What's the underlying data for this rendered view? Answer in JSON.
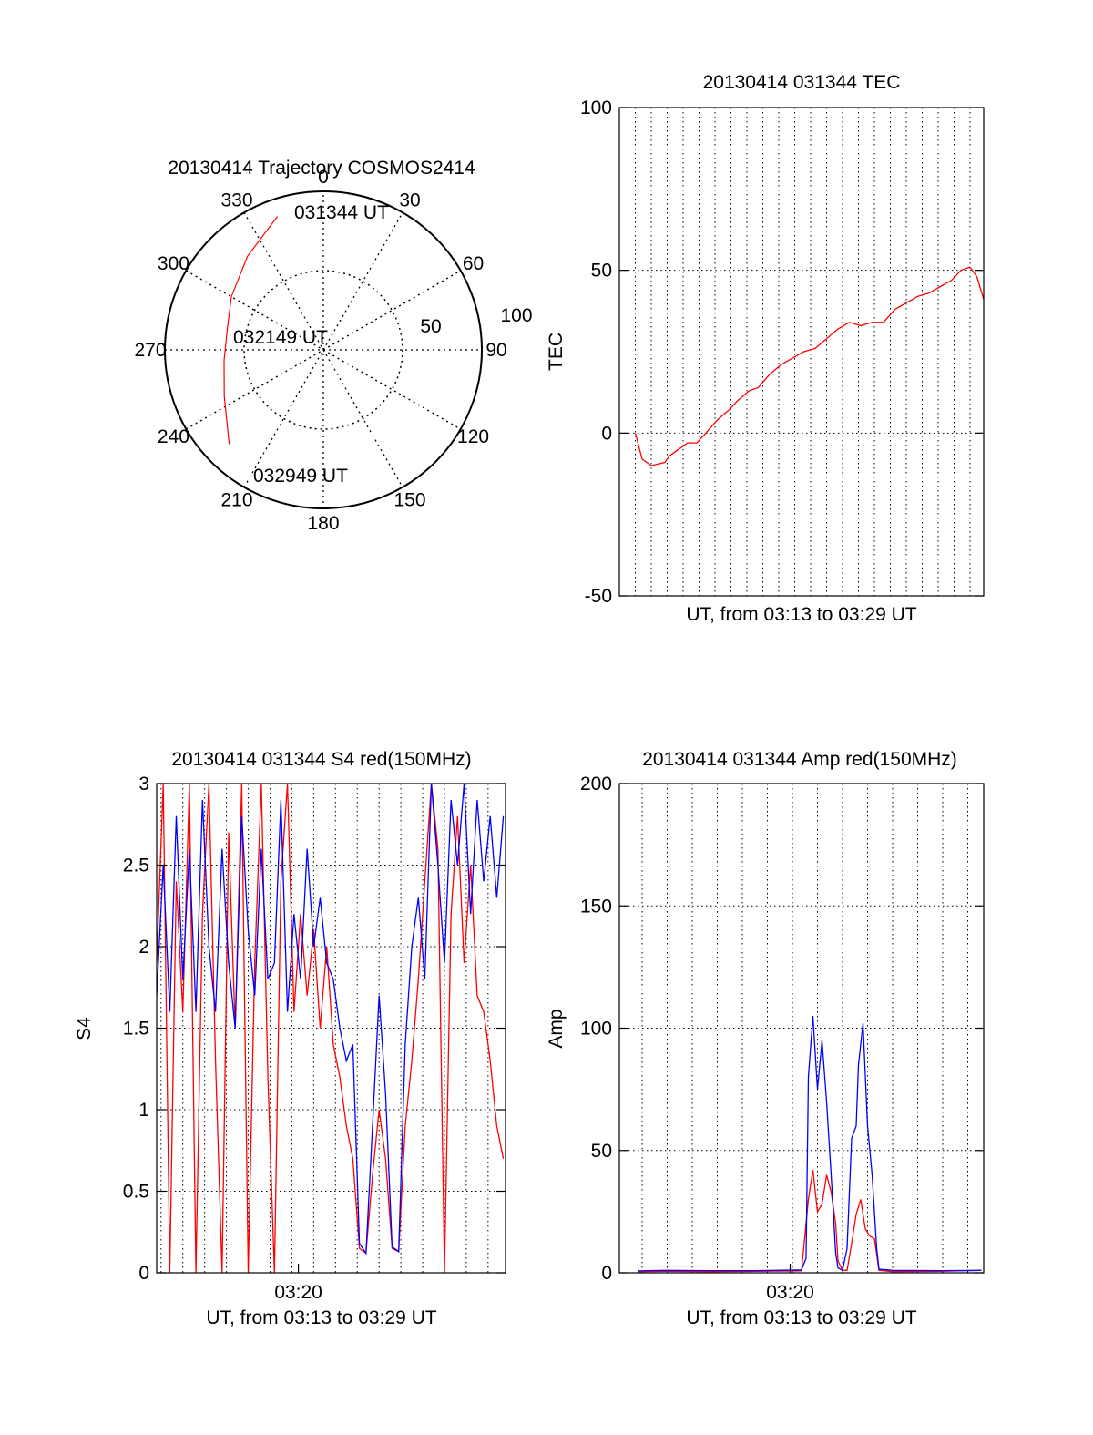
{
  "chart_data": [
    {
      "type": "polar",
      "title": "20130414 Trajectory COSMOS2414",
      "angle_labels": [
        "0",
        "30",
        "60",
        "90",
        "120",
        "150",
        "180",
        "210",
        "240",
        "270",
        "300",
        "330"
      ],
      "radius_labels": [
        "50",
        "100"
      ],
      "start_label": "031344 UT",
      "mid_label": "032149 UT",
      "end_label": "032949 UT",
      "trajectory_color": "#ff0000",
      "trajectory": [
        {
          "az": 341,
          "r": 89
        },
        {
          "az": 321,
          "r": 76
        },
        {
          "az": 300,
          "r": 67
        },
        {
          "az": 282,
          "r": 62
        },
        {
          "az": 264,
          "r": 63
        },
        {
          "az": 245,
          "r": 69
        },
        {
          "az": 225,
          "r": 84
        }
      ]
    },
    {
      "type": "line",
      "title": "20130414 031344 TEC",
      "xlabel": "UT, from 03:13 to 03:29 UT",
      "ylabel": "TEC",
      "ylim": [
        -50,
        100
      ],
      "yticks": [
        "-50",
        "0",
        "50",
        "100"
      ],
      "xlim": [
        0,
        16
      ],
      "xgrid": [
        0.7,
        1.4,
        2.1,
        2.8,
        3.5,
        4.2,
        4.9,
        5.6,
        6.3,
        7.0,
        7.7,
        8.4,
        9.1,
        9.8,
        10.5,
        11.2,
        11.9,
        12.6,
        13.3,
        14.0,
        14.7,
        15.4
      ],
      "series": [
        {
          "color": "#ff0000",
          "x": [
            0.7,
            1.0,
            1.4,
            2.0,
            2.2,
            2.6,
            3.0,
            3.4,
            3.8,
            4.3,
            4.8,
            5.2,
            5.7,
            6.1,
            6.6,
            7.1,
            7.6,
            8.1,
            8.6,
            9.1,
            9.6,
            10.1,
            10.6,
            11.1,
            11.6,
            12.1,
            12.6,
            13.1,
            13.6,
            14.1,
            14.6,
            15.0,
            15.4,
            15.7,
            16.0
          ],
          "y": [
            0,
            -8,
            -10,
            -9,
            -7,
            -5,
            -3,
            -3,
            0,
            4,
            7,
            10,
            13,
            14,
            18,
            21,
            23,
            25,
            26,
            29,
            32,
            34,
            33,
            34,
            34,
            38,
            40,
            42,
            43,
            45,
            47,
            50,
            51,
            48,
            41
          ]
        }
      ]
    },
    {
      "type": "line",
      "title": "20130414 031344 S4 red(150MHz)",
      "xlabel": "UT, from 03:13 to 03:29 UT",
      "ylabel": "S4",
      "ylim": [
        0,
        3
      ],
      "yticks": [
        "0",
        "0.5",
        "1",
        "1.5",
        "2",
        "2.5",
        "3"
      ],
      "xlim": [
        0,
        16
      ],
      "xtick_labels": [
        {
          "x": 6.5,
          "label": "03:20"
        }
      ],
      "xgrid": [
        0.2,
        1.2,
        2.2,
        3.2,
        4.2,
        5.2,
        6.2,
        7.2,
        8.2,
        9.2,
        10.2,
        11.2,
        12.2,
        13.2,
        14.2,
        15.2
      ],
      "series": [
        {
          "color": "#ff0000",
          "x": [
            0.0,
            0.3,
            0.6,
            0.9,
            1.2,
            1.5,
            1.8,
            2.1,
            2.4,
            2.7,
            3.0,
            3.3,
            3.6,
            3.9,
            4.2,
            4.5,
            4.8,
            5.1,
            5.4,
            5.7,
            6.0,
            6.3,
            6.6,
            6.9,
            7.2,
            7.5,
            7.8,
            8.1,
            8.4,
            8.7,
            9.0,
            9.3,
            9.6,
            9.9,
            10.2,
            10.5,
            10.8,
            11.1,
            11.4,
            11.7,
            12.0,
            12.3,
            12.6,
            12.9,
            13.2,
            13.5,
            13.8,
            14.1,
            14.4,
            14.7,
            15.0,
            15.3,
            15.6,
            15.9
          ],
          "y": [
            1.9,
            3.0,
            0.0,
            2.4,
            1.6,
            3.0,
            0.0,
            2.2,
            3.0,
            1.3,
            0.0,
            2.7,
            1.5,
            3.0,
            0.0,
            1.9,
            3.0,
            1.2,
            0.0,
            2.4,
            3.0,
            1.6,
            2.2,
            1.7,
            2.1,
            1.5,
            2.0,
            1.4,
            1.2,
            0.9,
            0.7,
            0.15,
            0.12,
            0.6,
            1.0,
            0.7,
            0.15,
            0.13,
            0.9,
            1.3,
            1.8,
            2.4,
            3.0,
            2.6,
            0.0,
            2.2,
            2.8,
            1.9,
            2.5,
            1.7,
            1.6,
            1.3,
            0.9,
            0.7
          ]
        },
        {
          "color": "#0000ff",
          "x": [
            0.0,
            0.3,
            0.6,
            0.9,
            1.2,
            1.5,
            1.8,
            2.1,
            2.4,
            2.7,
            3.0,
            3.3,
            3.6,
            3.9,
            4.2,
            4.5,
            4.8,
            5.1,
            5.4,
            5.7,
            6.0,
            6.3,
            6.6,
            6.9,
            7.2,
            7.5,
            7.8,
            8.1,
            8.4,
            8.7,
            9.0,
            9.3,
            9.6,
            9.9,
            10.2,
            10.5,
            10.8,
            11.1,
            11.4,
            11.7,
            12.0,
            12.3,
            12.6,
            12.9,
            13.2,
            13.5,
            13.8,
            14.1,
            14.4,
            14.7,
            15.0,
            15.3,
            15.6,
            15.9
          ],
          "y": [
            1.7,
            2.5,
            1.6,
            2.8,
            1.8,
            2.6,
            1.6,
            2.9,
            2.0,
            1.6,
            2.6,
            1.9,
            1.5,
            2.8,
            2.1,
            1.7,
            2.6,
            1.8,
            1.9,
            2.9,
            1.6,
            2.2,
            1.8,
            2.6,
            2.0,
            2.3,
            1.9,
            1.8,
            1.5,
            1.3,
            1.4,
            0.18,
            0.12,
            0.9,
            1.7,
            1.1,
            0.16,
            0.13,
            1.4,
            2.0,
            2.3,
            1.8,
            3.0,
            2.5,
            1.9,
            2.9,
            2.5,
            3.0,
            2.2,
            2.9,
            2.4,
            2.8,
            2.3,
            2.8
          ]
        }
      ]
    },
    {
      "type": "line",
      "title": "20130414 031344 Amp red(150MHz)",
      "xlabel": "UT, from 03:13 to 03:29 UT",
      "ylabel": "Amp",
      "ylim": [
        0,
        200
      ],
      "yticks": [
        "0",
        "50",
        "100",
        "150",
        "200"
      ],
      "xlim": [
        0,
        16
      ],
      "xtick_labels": [
        {
          "x": 7.5,
          "label": "03:20"
        }
      ],
      "xgrid": [
        1.0,
        2.1,
        3.2,
        4.3,
        5.4,
        6.5,
        7.6,
        8.7,
        9.8,
        10.9,
        12.0,
        13.1,
        14.2,
        15.3
      ],
      "series": [
        {
          "color": "#ff0000",
          "x": [
            0.8,
            2.0,
            4.0,
            6.0,
            8.0,
            8.3,
            8.5,
            8.7,
            8.9,
            9.1,
            9.3,
            9.5,
            9.6,
            9.8,
            10.0,
            10.2,
            10.4,
            10.6,
            10.8,
            11.0,
            11.2,
            11.4,
            12.0,
            14.0,
            15.9
          ],
          "y": [
            0.5,
            0.6,
            0.5,
            0.6,
            0.8,
            30,
            42,
            25,
            28,
            40,
            33,
            20,
            5,
            1,
            1,
            12,
            24,
            30,
            18,
            15,
            14,
            1,
            0.5,
            0.6,
            1.0
          ]
        },
        {
          "color": "#0000ff",
          "x": [
            0.8,
            2.0,
            4.0,
            6.0,
            8.0,
            8.2,
            8.3,
            8.5,
            8.7,
            8.9,
            9.1,
            9.3,
            9.5,
            9.6,
            9.8,
            10.0,
            10.2,
            10.4,
            10.5,
            10.7,
            10.9,
            11.1,
            11.3,
            11.4,
            12.0,
            14.0,
            15.9
          ],
          "y": [
            0.8,
            1.0,
            0.9,
            0.9,
            1.2,
            6,
            80,
            105,
            75,
            95,
            70,
            40,
            8,
            2,
            1,
            10,
            55,
            60,
            85,
            102,
            60,
            40,
            10,
            1.5,
            1.0,
            0.9,
            1.0
          ]
        }
      ]
    }
  ]
}
